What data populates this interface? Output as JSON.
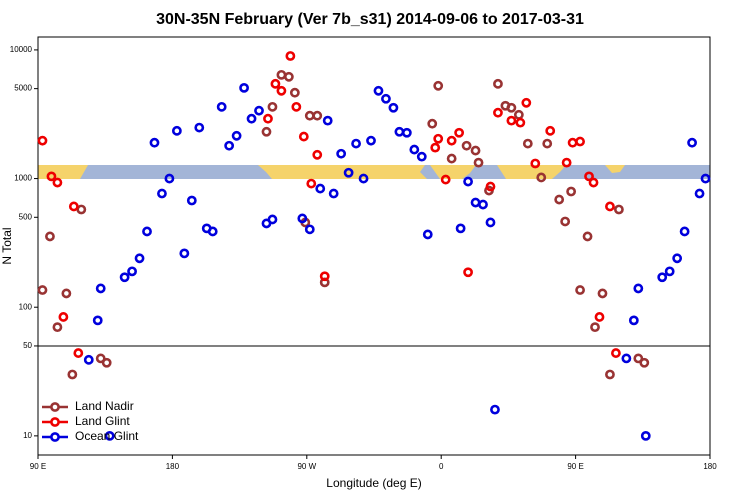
{
  "chart_data": {
    "type": "scatter",
    "title": "30N-35N February (Ver 7b_s31)   2014-09-06 to 2017-03-31",
    "x_label": "Longitude (deg E)",
    "y_label": "N Total",
    "xlim": [
      90,
      540
    ],
    "xticks": [
      {
        "value": 90,
        "label": "90 E"
      },
      180,
      {
        "value": 270,
        "label": "90 W"
      },
      {
        "value": 360,
        "label": "0"
      },
      {
        "value": 450,
        "label": "90 E"
      },
      {
        "value": 540,
        "label": "180"
      }
    ],
    "ylim": [
      7.1,
      12600
    ],
    "log_y": true,
    "yticks": [
      10,
      50,
      100,
      500,
      1000,
      5000,
      10000
    ],
    "hline": 50,
    "legend": "lower left",
    "series": [
      {
        "name": "Land Nadir",
        "color": "#993333",
        "x": [
          93,
          98,
          103,
          109,
          113,
          119,
          132,
          136,
          243,
          247,
          253,
          258,
          262,
          269,
          272,
          277,
          282,
          354,
          358,
          367,
          377,
          383,
          385,
          392,
          398,
          403,
          407,
          412,
          418,
          427,
          431,
          439,
          443,
          447,
          453,
          458,
          463,
          468,
          473,
          479,
          492,
          496
        ],
        "values": [
          136,
          355,
          70,
          128,
          30,
          575,
          40,
          37,
          2310,
          3610,
          6400,
          6180,
          4650,
          456,
          3080,
          3080,
          156,
          2670,
          5260,
          1430,
          1800,
          1650,
          1330,
          807,
          5450,
          3680,
          3550,
          3130,
          1870,
          1020,
          1870,
          687,
          464,
          793,
          136,
          355,
          70,
          128,
          30,
          575,
          40,
          37
        ]
      },
      {
        "name": "Land Glint",
        "color": "#ee0000",
        "x": [
          93,
          99,
          103,
          107,
          114,
          117,
          244,
          249,
          253,
          259,
          263,
          268,
          273,
          277,
          282,
          356,
          358,
          363,
          367,
          372,
          378,
          393,
          398,
          407,
          413,
          417,
          423,
          433,
          444,
          448,
          453,
          459,
          462,
          466,
          473,
          477
        ],
        "values": [
          1970,
          1040,
          931,
          84,
          607,
          44,
          2920,
          5450,
          4810,
          8970,
          3610,
          2120,
          914,
          1530,
          174,
          1740,
          2040,
          982,
          1970,
          2270,
          187,
          867,
          3250,
          2820,
          2720,
          3880,
          1310,
          2350,
          1330,
          1900,
          1940,
          1040,
          931,
          84,
          607,
          44
        ]
      },
      {
        "name": "Ocean Glint",
        "color": "#0000dd",
        "x": [
          124,
          130,
          132,
          138,
          148,
          153,
          158,
          163,
          168,
          173,
          178,
          183,
          188,
          193,
          198,
          203,
          207,
          213,
          218,
          223,
          228,
          233,
          238,
          243,
          247,
          267,
          272,
          279,
          284,
          288,
          293,
          298,
          303,
          308,
          313,
          318,
          323,
          328,
          332,
          337,
          342,
          347,
          351,
          373,
          378,
          383,
          388,
          393,
          396,
          484,
          489,
          492,
          497,
          508,
          513,
          518,
          523,
          528,
          533,
          537
        ],
        "values": [
          39,
          79,
          140,
          10,
          171,
          190,
          240,
          388,
          1900,
          765,
          1000,
          2350,
          262,
          675,
          2490,
          410,
          388,
          3610,
          1800,
          2150,
          5070,
          2920,
          3370,
          448,
          481,
          490,
          403,
          836,
          2820,
          765,
          1560,
          1110,
          1870,
          1000,
          1970,
          4810,
          4170,
          3550,
          2310,
          2270,
          1680,
          1480,
          368,
          410,
          948,
          651,
          628,
          456,
          16,
          40,
          79,
          140,
          10,
          171,
          190,
          240,
          388,
          1900,
          765,
          1000
        ]
      }
    ]
  }
}
